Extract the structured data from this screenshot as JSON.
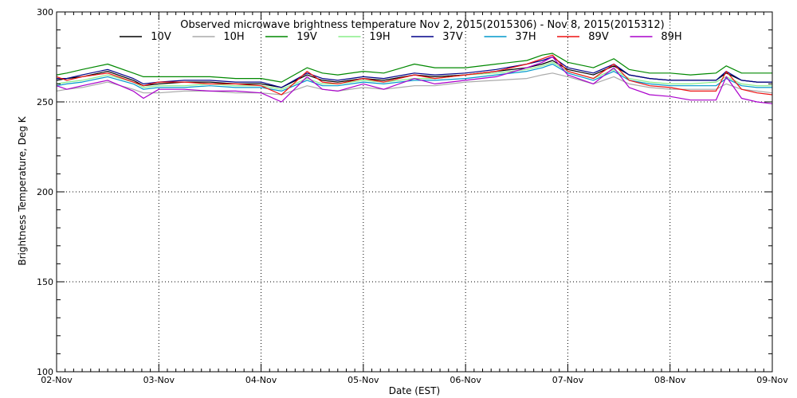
{
  "chart_data": {
    "type": "line",
    "title": "Observed microwave brightness temperature Nov  2, 2015(2015306) - Nov  8, 2015(2015312)",
    "xlabel": "Date (EST)",
    "ylabel": "Brightness Temperature, Deg K",
    "xlim": [
      0,
      7
    ],
    "ylim": [
      100,
      300
    ],
    "x_tick_labels": [
      "02-Nov",
      "03-Nov",
      "04-Nov",
      "05-Nov",
      "06-Nov",
      "07-Nov",
      "08-Nov",
      "09-Nov"
    ],
    "y_ticks": [
      100,
      150,
      200,
      250,
      300
    ],
    "grid": true,
    "legend_position": "top",
    "x_days": [
      0,
      0.1,
      0.25,
      0.5,
      0.75,
      0.85,
      1.0,
      1.25,
      1.5,
      1.75,
      2.0,
      2.2,
      2.45,
      2.6,
      2.75,
      3.0,
      3.2,
      3.5,
      3.7,
      4.0,
      4.3,
      4.6,
      4.75,
      4.85,
      5.0,
      5.25,
      5.45,
      5.6,
      5.8,
      6.0,
      6.2,
      6.45,
      6.55,
      6.7,
      6.85,
      7.0
    ],
    "series": [
      {
        "name": "10V",
        "color": "#000000",
        "values": [
          262,
          263,
          264,
          267,
          262,
          259,
          260,
          261,
          261,
          260,
          260,
          258,
          265,
          262,
          261,
          263,
          262,
          265,
          264,
          265,
          267,
          269,
          271,
          273,
          268,
          265,
          270,
          265,
          263,
          262,
          262,
          262,
          266,
          262,
          261,
          261
        ]
      },
      {
        "name": "10H",
        "color": "#aaaaaa",
        "values": [
          256,
          257,
          258,
          261,
          257,
          255,
          255,
          256,
          256,
          255,
          255,
          254,
          259,
          257,
          256,
          258,
          257,
          259,
          259,
          261,
          262,
          263,
          265,
          266,
          264,
          260,
          264,
          260,
          258,
          257,
          257,
          257,
          260,
          257,
          256,
          255
        ]
      },
      {
        "name": "19V",
        "color": "#008800",
        "values": [
          265,
          266,
          268,
          271,
          266,
          264,
          264,
          264,
          264,
          263,
          263,
          261,
          269,
          266,
          265,
          267,
          266,
          271,
          269,
          269,
          271,
          273,
          276,
          277,
          272,
          269,
          274,
          268,
          266,
          266,
          265,
          266,
          270,
          266,
          266,
          266
        ]
      },
      {
        "name": "19H",
        "color": "#88ee88",
        "values": [
          260,
          261,
          262,
          265,
          261,
          258,
          259,
          259,
          260,
          259,
          259,
          257,
          263,
          260,
          260,
          262,
          261,
          263,
          263,
          265,
          266,
          268,
          270,
          272,
          267,
          263,
          268,
          263,
          261,
          260,
          260,
          261,
          264,
          260,
          259,
          259
        ]
      },
      {
        "name": "37V",
        "color": "#000088",
        "values": [
          263,
          263,
          265,
          268,
          263,
          260,
          261,
          262,
          262,
          261,
          261,
          258,
          266,
          263,
          262,
          264,
          263,
          266,
          265,
          266,
          268,
          271,
          273,
          275,
          269,
          266,
          271,
          265,
          263,
          262,
          262,
          262,
          267,
          262,
          261,
          261
        ]
      },
      {
        "name": "37H",
        "color": "#0099cc",
        "values": [
          259,
          260,
          261,
          264,
          260,
          257,
          258,
          258,
          259,
          258,
          258,
          256,
          262,
          259,
          259,
          261,
          260,
          262,
          262,
          263,
          265,
          267,
          269,
          271,
          266,
          262,
          267,
          262,
          260,
          259,
          259,
          259,
          263,
          259,
          258,
          258
        ]
      },
      {
        "name": "89V",
        "color": "#ee1111",
        "values": [
          264,
          262,
          264,
          266,
          261,
          259,
          261,
          261,
          260,
          260,
          259,
          254,
          267,
          261,
          260,
          263,
          261,
          265,
          263,
          265,
          267,
          271,
          274,
          276,
          267,
          263,
          271,
          262,
          259,
          258,
          256,
          256,
          267,
          257,
          255,
          254
        ]
      },
      {
        "name": "89H",
        "color": "#aa00cc",
        "values": [
          259,
          257,
          259,
          262,
          256,
          252,
          257,
          257,
          256,
          256,
          255,
          250,
          264,
          257,
          256,
          260,
          257,
          263,
          260,
          262,
          264,
          269,
          272,
          275,
          265,
          260,
          269,
          258,
          254,
          253,
          251,
          251,
          264,
          252,
          250,
          249
        ]
      }
    ]
  }
}
